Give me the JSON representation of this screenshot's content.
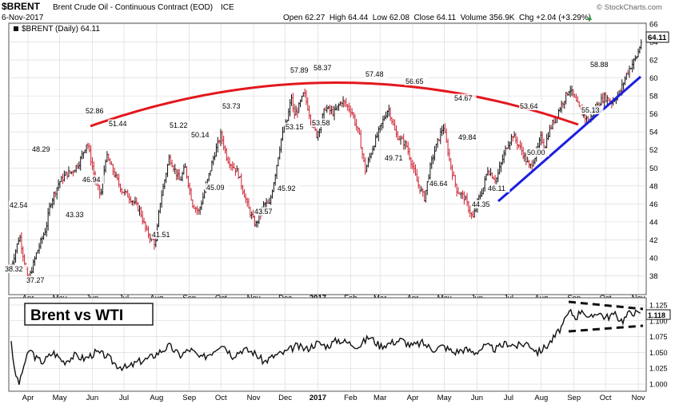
{
  "header": {
    "title": "$BRENT",
    "subtitle": "Brent Crude Oil - Continuous Contract (EOD)",
    "exchange": "ICE",
    "date": "6-Nov-2017",
    "ohlc": "Open 62.27  High 64.44  Low 62.08  Close 64.11  Volume 356.9K  Chg +2.04 (+3.29%)",
    "ohlc_arrow": "▲",
    "brand": "© StockCharts.com"
  },
  "legend": {
    "label": "$BRENT (Daily) 64.11",
    "last_tag": "64.11"
  },
  "lower_panel": {
    "title": "Brent vs WTI",
    "last_tag": "1.118"
  },
  "colors": {
    "up": "#111111",
    "down": "#cc1f2e",
    "arc": "#e3171e",
    "trend": "#1c1ee0",
    "ratio": "#111111",
    "grid": "#d6d6d6"
  },
  "chart_data": [
    {
      "type": "line",
      "title": "$BRENT (Daily) 64.11",
      "ylim": [
        36,
        66
      ],
      "y_ticks": [
        38,
        40,
        42,
        44,
        46,
        48,
        50,
        52,
        54,
        56,
        58,
        60,
        62,
        64,
        66
      ],
      "x_labels": [
        "Apr",
        "May",
        "Jun",
        "Jul",
        "Aug",
        "Sep",
        "Oct",
        "Nov",
        "Dec",
        "2017",
        "Feb",
        "Mar",
        "Apr",
        "May",
        "Jun",
        "Jul",
        "Aug",
        "Sep",
        "Oct",
        "Nov"
      ],
      "x_label_days": [
        16,
        46,
        77,
        107,
        138,
        169,
        199,
        230,
        260,
        291,
        322,
        350,
        381,
        411,
        442,
        472,
        503,
        534,
        564,
        595
      ],
      "grid": true,
      "series": [
        {
          "x_day": [
            0,
            8,
            16,
            24,
            33,
            37,
            45,
            52,
            58,
            65,
            72,
            80,
            85,
            90,
            98,
            105,
            112,
            122,
            128,
            137,
            141,
            150,
            160,
            165,
            172,
            178,
            185,
            192,
            199,
            205,
            215,
            225,
            232,
            240,
            245,
            250,
            256,
            262,
            266,
            268,
            272,
            278,
            284,
            290,
            298,
            306,
            314,
            323,
            330,
            336,
            344,
            354,
            358,
            365,
            375,
            385,
            392,
            398,
            402,
            410,
            417,
            423,
            430,
            438,
            442,
            448,
            452,
            460,
            470,
            476,
            484,
            492,
            498,
            503,
            506,
            510,
            520,
            530,
            536,
            542,
            548,
            556,
            563,
            570,
            578,
            584,
            589,
            594,
            598
          ],
          "values": [
            39.0,
            42.5,
            37.3,
            40.5,
            43.3,
            46.0,
            48.3,
            49.3,
            49.6,
            50.7,
            52.9,
            48.5,
            46.9,
            51.4,
            49.3,
            47.5,
            46.8,
            45.3,
            43.0,
            41.5,
            46.0,
            51.2,
            48.5,
            50.1,
            46.0,
            45.1,
            48.0,
            51.2,
            53.7,
            51.0,
            49.5,
            45.5,
            43.6,
            46.0,
            45.9,
            49.0,
            53.15,
            55.4,
            57.9,
            55.8,
            56.5,
            58.37,
            55.5,
            53.58,
            56.7,
            56.1,
            57.48,
            56.3,
            53.7,
            49.71,
            52.6,
            55.6,
            56.65,
            53.7,
            52.5,
            48.5,
            46.64,
            50.3,
            52.0,
            54.67,
            50.2,
            47.5,
            46.7,
            44.35,
            46.11,
            47.8,
            49.84,
            48.6,
            52.4,
            53.64,
            52.0,
            50.0,
            51.5,
            53.5,
            52.2,
            54.0,
            56.5,
            58.88,
            57.3,
            56.0,
            55.13,
            57.0,
            57.9,
            57.3,
            58.5,
            60.5,
            61.5,
            62.5,
            64.11
          ]
        }
      ],
      "annotations": [
        "42.54",
        "38.32",
        "37.27",
        "48.29",
        "43.33",
        "52.86",
        "51.44",
        "46.94",
        "41.51",
        "51.22",
        "50.14",
        "45.09",
        "53.73",
        "43.57",
        "45.92",
        "57.89",
        "53.15",
        "58.37",
        "53.58",
        "57.48",
        "49.71",
        "56.65",
        "46.64",
        "54.67",
        "49.84",
        "46.11",
        "44.35",
        "53.64",
        "50.00",
        "58.88",
        "55.13"
      ]
    },
    {
      "type": "line",
      "title": "Brent vs WTI",
      "ylim": [
        0.99,
        1.135
      ],
      "y_ticks": [
        1.0,
        1.025,
        1.05,
        1.075,
        1.1,
        1.125
      ],
      "x_labels": [
        "Apr",
        "May",
        "Jun",
        "Jul",
        "Aug",
        "Sep",
        "Oct",
        "Nov",
        "Dec",
        "2017",
        "Feb",
        "Mar",
        "Apr",
        "May",
        "Jun",
        "Jul",
        "Aug",
        "Sep",
        "Oct",
        "Nov"
      ],
      "grid": true,
      "series": [
        {
          "x_day": [
            0,
            3,
            8,
            12,
            18,
            24,
            30,
            40,
            50,
            60,
            70,
            80,
            90,
            100,
            110,
            120,
            130,
            140,
            150,
            160,
            170,
            180,
            190,
            200,
            210,
            220,
            230,
            240,
            250,
            260,
            270,
            280,
            290,
            300,
            310,
            320,
            330,
            340,
            350,
            360,
            370,
            380,
            390,
            400,
            410,
            420,
            430,
            440,
            450,
            460,
            470,
            480,
            490,
            500,
            508,
            516,
            524,
            530,
            536,
            542,
            548,
            556,
            564,
            572,
            580,
            588,
            596,
            598
          ],
          "values": [
            1.07,
            1.02,
            1.0,
            1.03,
            1.055,
            1.04,
            1.035,
            1.05,
            1.035,
            1.045,
            1.04,
            1.05,
            1.045,
            1.03,
            1.025,
            1.035,
            1.04,
            1.05,
            1.06,
            1.045,
            1.055,
            1.04,
            1.05,
            1.065,
            1.045,
            1.055,
            1.05,
            1.035,
            1.045,
            1.05,
            1.06,
            1.055,
            1.065,
            1.06,
            1.07,
            1.065,
            1.06,
            1.075,
            1.06,
            1.065,
            1.07,
            1.06,
            1.065,
            1.055,
            1.06,
            1.05,
            1.055,
            1.05,
            1.06,
            1.055,
            1.065,
            1.06,
            1.065,
            1.05,
            1.06,
            1.075,
            1.095,
            1.115,
            1.105,
            1.12,
            1.1,
            1.115,
            1.105,
            1.11,
            1.1,
            1.115,
            1.11,
            1.118
          ]
        }
      ]
    }
  ]
}
